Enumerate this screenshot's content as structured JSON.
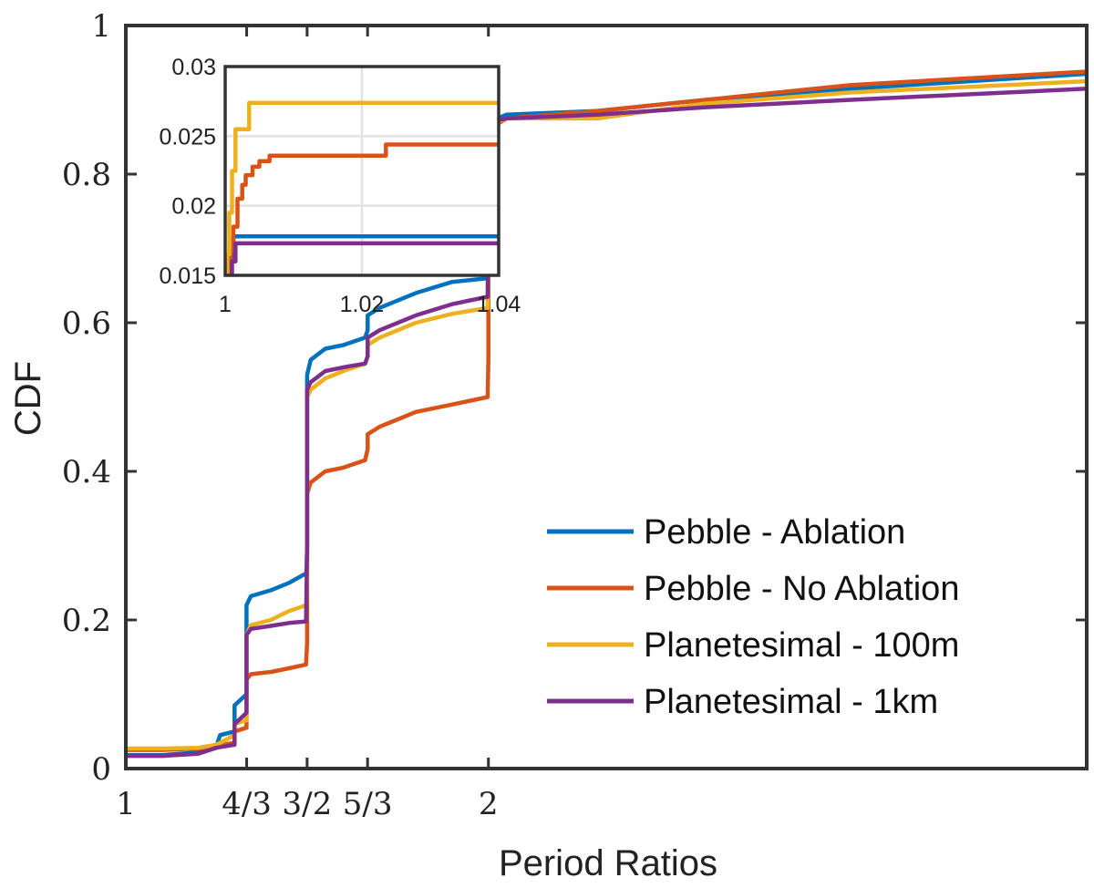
{
  "chart_data": {
    "type": "line",
    "xlabel": "Period Ratios",
    "ylabel": "CDF",
    "xlim": [
      1,
      3.65
    ],
    "ylim": [
      0,
      1
    ],
    "x_ticks": [
      {
        "value": 1,
        "label": "1"
      },
      {
        "value": 1.3333,
        "label": "4/3"
      },
      {
        "value": 1.5,
        "label": "3/2"
      },
      {
        "value": 1.6667,
        "label": "5/3"
      },
      {
        "value": 2,
        "label": "2"
      }
    ],
    "y_ticks": [
      {
        "value": 0,
        "label": "0"
      },
      {
        "value": 0.2,
        "label": "0.2"
      },
      {
        "value": 0.4,
        "label": "0.4"
      },
      {
        "value": 0.6,
        "label": "0.6"
      },
      {
        "value": 0.8,
        "label": "0.8"
      },
      {
        "value": 1,
        "label": "1"
      }
    ],
    "legend_position": "lower-right",
    "series": [
      {
        "name": "Pebble - Ablation",
        "color": "#0072BD",
        "x": [
          1,
          1.1,
          1.2,
          1.25,
          1.26,
          1.3,
          1.3,
          1.333,
          1.333,
          1.345,
          1.4,
          1.45,
          1.498,
          1.5,
          1.5,
          1.51,
          1.55,
          1.6,
          1.66,
          1.667,
          1.667,
          1.7,
          1.8,
          1.9,
          2.0,
          2.0,
          2.0,
          2.05,
          2.3,
          2.6,
          3.0,
          3.65
        ],
        "y": [
          0.018,
          0.018,
          0.022,
          0.03,
          0.045,
          0.05,
          0.085,
          0.1,
          0.22,
          0.232,
          0.24,
          0.25,
          0.263,
          0.3,
          0.53,
          0.55,
          0.565,
          0.57,
          0.58,
          0.59,
          0.61,
          0.62,
          0.64,
          0.655,
          0.66,
          0.75,
          0.87,
          0.88,
          0.885,
          0.9,
          0.915,
          0.935
        ]
      },
      {
        "name": "Pebble - No Ablation",
        "color": "#D95319",
        "x": [
          1,
          1.1,
          1.2,
          1.25,
          1.3,
          1.3,
          1.333,
          1.333,
          1.345,
          1.4,
          1.45,
          1.497,
          1.5,
          1.5,
          1.51,
          1.55,
          1.6,
          1.66,
          1.667,
          1.667,
          1.7,
          1.75,
          1.8,
          1.9,
          1.998,
          2.0,
          2.0,
          2.0,
          2.05,
          2.3,
          2.6,
          3.0,
          3.65
        ],
        "y": [
          0.025,
          0.025,
          0.027,
          0.03,
          0.035,
          0.05,
          0.055,
          0.12,
          0.127,
          0.13,
          0.135,
          0.14,
          0.17,
          0.37,
          0.385,
          0.4,
          0.405,
          0.415,
          0.43,
          0.45,
          0.46,
          0.47,
          0.48,
          0.49,
          0.5,
          0.55,
          0.75,
          0.86,
          0.875,
          0.885,
          0.9,
          0.92,
          0.938
        ]
      },
      {
        "name": "Planetesimal - 100m",
        "color": "#EDB120",
        "x": [
          1,
          1.1,
          1.2,
          1.25,
          1.3,
          1.3,
          1.333,
          1.333,
          1.345,
          1.4,
          1.45,
          1.498,
          1.5,
          1.5,
          1.51,
          1.55,
          1.6,
          1.66,
          1.667,
          1.667,
          1.7,
          1.8,
          1.9,
          1.998,
          2.0,
          2.0,
          2.05,
          2.3,
          2.6,
          3.0,
          3.65
        ],
        "y": [
          0.027,
          0.027,
          0.028,
          0.032,
          0.045,
          0.06,
          0.065,
          0.18,
          0.193,
          0.2,
          0.212,
          0.22,
          0.26,
          0.5,
          0.51,
          0.525,
          0.535,
          0.545,
          0.555,
          0.57,
          0.58,
          0.6,
          0.612,
          0.62,
          0.7,
          0.865,
          0.875,
          0.875,
          0.895,
          0.91,
          0.925
        ]
      },
      {
        "name": "Planetesimal - 1km",
        "color": "#7E2F8E",
        "x": [
          1,
          1.1,
          1.2,
          1.25,
          1.3,
          1.3,
          1.333,
          1.333,
          1.345,
          1.4,
          1.45,
          1.497,
          1.5,
          1.5,
          1.51,
          1.55,
          1.6,
          1.66,
          1.667,
          1.667,
          1.7,
          1.8,
          1.9,
          1.998,
          2.0,
          2.0,
          2.05,
          2.3,
          2.6,
          3.0,
          3.65
        ],
        "y": [
          0.017,
          0.017,
          0.02,
          0.028,
          0.032,
          0.06,
          0.075,
          0.18,
          0.188,
          0.192,
          0.196,
          0.198,
          0.3,
          0.51,
          0.52,
          0.535,
          0.54,
          0.545,
          0.555,
          0.58,
          0.59,
          0.61,
          0.625,
          0.635,
          0.75,
          0.87,
          0.875,
          0.88,
          0.89,
          0.9,
          0.915
        ]
      }
    ],
    "inset": {
      "xlim": [
        1,
        1.04
      ],
      "ylim": [
        0.015,
        0.03
      ],
      "x_ticks": [
        {
          "value": 1,
          "label": "1"
        },
        {
          "value": 1.02,
          "label": "1.02"
        },
        {
          "value": 1.04,
          "label": "1.04"
        }
      ],
      "y_ticks": [
        {
          "value": 0.015,
          "label": "0.015"
        },
        {
          "value": 0.02,
          "label": "0.02"
        },
        {
          "value": 0.025,
          "label": "0.025"
        },
        {
          "value": 0.03,
          "label": "0.03"
        }
      ],
      "series": [
        {
          "name": "Pebble - Ablation",
          "color": "#0072BD",
          "x": [
            1.0005,
            1.0005,
            1.0012,
            1.0012,
            1.04
          ],
          "y": [
            0.015,
            0.016,
            0.0163,
            0.0178,
            0.0178
          ]
        },
        {
          "name": "Pebble - No Ablation",
          "color": "#D95319",
          "x": [
            1.0008,
            1.0008,
            1.0012,
            1.0012,
            1.0018,
            1.0018,
            1.0025,
            1.0025,
            1.003,
            1.003,
            1.004,
            1.004,
            1.005,
            1.005,
            1.0065,
            1.0065,
            1.0235,
            1.0235,
            1.04
          ],
          "y": [
            0.015,
            0.0168,
            0.0168,
            0.0185,
            0.0185,
            0.0205,
            0.0205,
            0.0215,
            0.0215,
            0.0222,
            0.0222,
            0.0228,
            0.0228,
            0.0232,
            0.0232,
            0.0236,
            0.0236,
            0.0244,
            0.0244
          ]
        },
        {
          "name": "Planetesimal - 100m",
          "color": "#EDB120",
          "x": [
            1.0003,
            1.0003,
            1.0006,
            1.0006,
            1.001,
            1.001,
            1.0015,
            1.0015,
            1.0035,
            1.0035,
            1.04
          ],
          "y": [
            0.015,
            0.0165,
            0.0165,
            0.0195,
            0.0195,
            0.0225,
            0.0225,
            0.0255,
            0.0255,
            0.0274,
            0.0274
          ]
        },
        {
          "name": "Planetesimal - 1km",
          "color": "#7E2F8E",
          "x": [
            1.001,
            1.001,
            1.0015,
            1.0015,
            1.04
          ],
          "y": [
            0.015,
            0.016,
            0.016,
            0.0173,
            0.0173
          ]
        }
      ]
    }
  }
}
